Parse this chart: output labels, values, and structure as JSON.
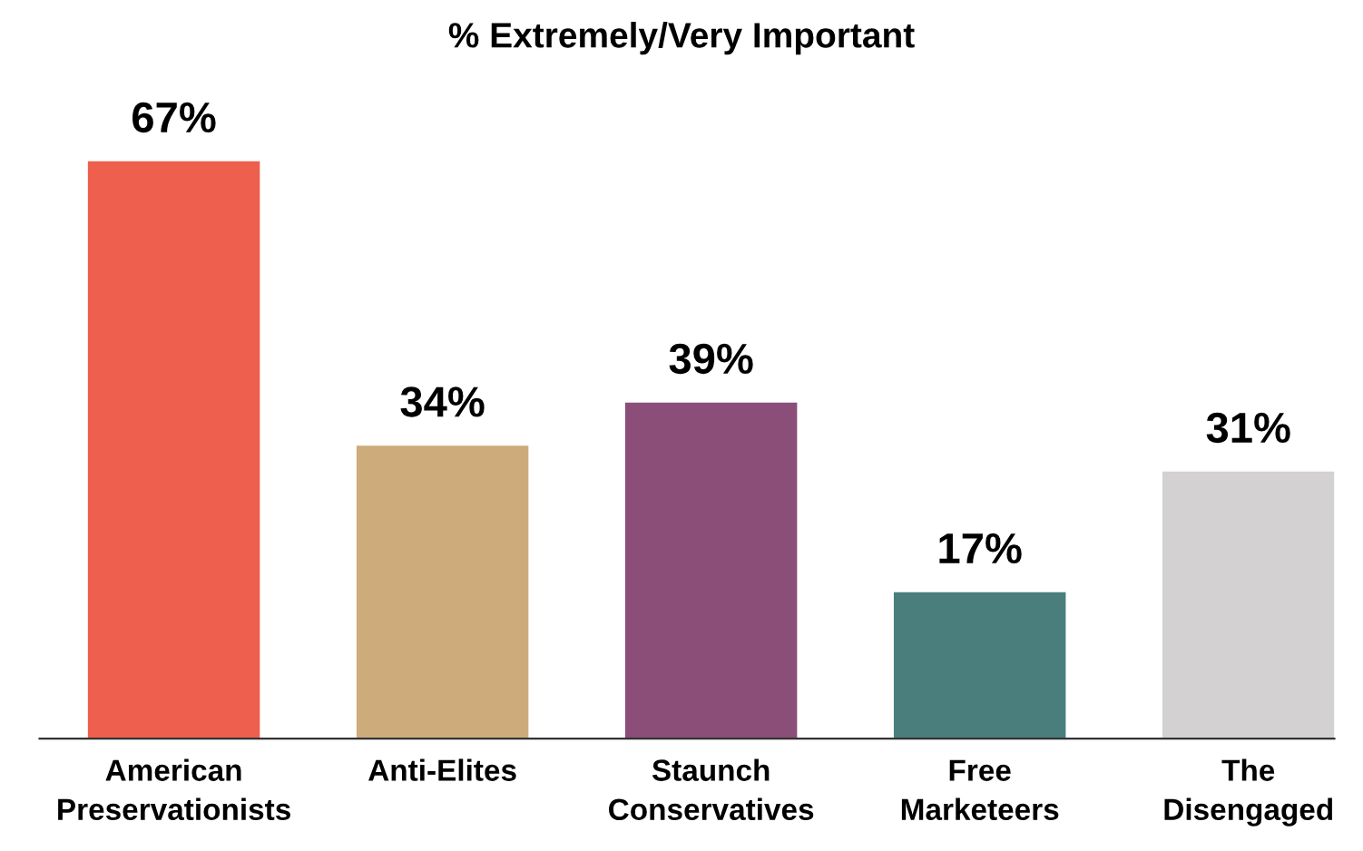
{
  "chart_data": {
    "type": "bar",
    "title": "% Extremely/Very Important",
    "categories": [
      "American\nPreservationists",
      "Anti-Elites",
      "Staunch\nConservatives",
      "Free\nMarketeers",
      "The\nDisengaged"
    ],
    "values": [
      67,
      34,
      39,
      17,
      31
    ],
    "value_labels": [
      "67%",
      "34%",
      "39%",
      "17%",
      "31%"
    ],
    "colors": [
      "#ee5f4e",
      "#cdab7a",
      "#8a4e78",
      "#4a7e7c",
      "#d3d1d2"
    ],
    "grid": false,
    "legend": false
  }
}
